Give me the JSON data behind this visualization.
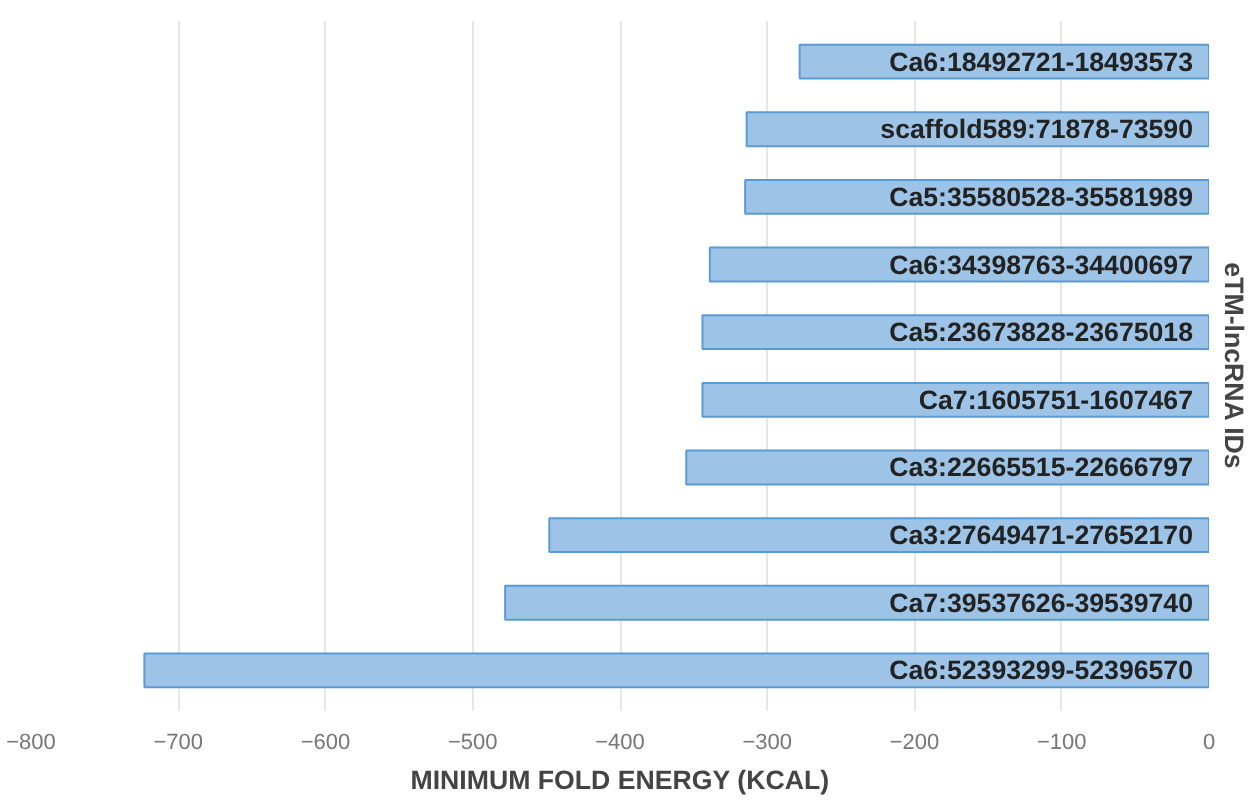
{
  "chart_data": {
    "type": "bar",
    "orientation": "horizontal",
    "xlabel": "MINIMUM FOLD ENERGY (KCAL)",
    "ylabel": "eTM-lncRNA IDs",
    "categories": [
      "Ca6:18492721-18493573",
      "scaffold589:71878-73590",
      "Ca5:35580528-35581989",
      "Ca6:34398763-34400697",
      "Ca5:23673828-23675018",
      "Ca7:1605751-1607467",
      "Ca3:22665515-22666797",
      "Ca3:27649471-27652170",
      "Ca7:39537626-39539740",
      "Ca6:52393299-52396570"
    ],
    "values": [
      -278,
      -314,
      -315,
      -339,
      -344,
      -344,
      -355,
      -448,
      -478,
      -723
    ],
    "color": "#9dc3e6",
    "xlim": [
      -800,
      0
    ],
    "xticks": [
      -800,
      -700,
      -600,
      -500,
      -400,
      -300,
      -200,
      -100,
      0
    ],
    "grid": "x"
  }
}
